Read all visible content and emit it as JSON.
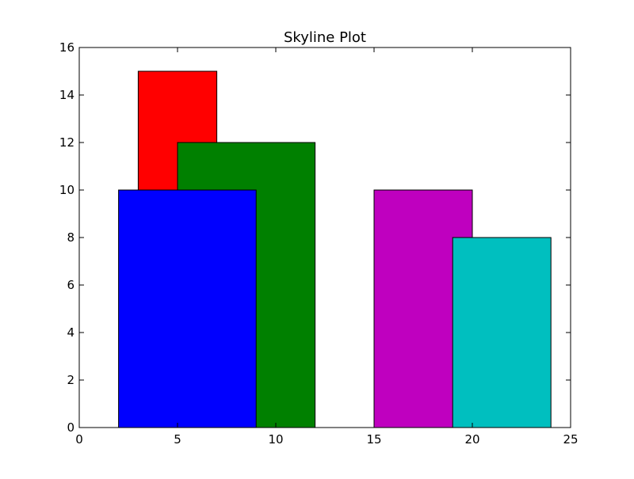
{
  "chart_data": {
    "type": "bar",
    "title": "Skyline Plot",
    "xlabel": "",
    "ylabel": "",
    "xlim": [
      0,
      25
    ],
    "ylim": [
      0,
      16
    ],
    "grid": false,
    "xticks": [
      "0",
      "5",
      "10",
      "15",
      "20",
      "25"
    ],
    "yticks": [
      "0",
      "2",
      "4",
      "6",
      "8",
      "10",
      "12",
      "14",
      "16"
    ],
    "buildings": [
      {
        "left": 3,
        "right": 7,
        "height": 15,
        "color": "#ff0000"
      },
      {
        "left": 5,
        "right": 12,
        "height": 12,
        "color": "#008000"
      },
      {
        "left": 2,
        "right": 9,
        "height": 10,
        "color": "#0000ff"
      },
      {
        "left": 15,
        "right": 20,
        "height": 10,
        "color": "#bf00bf"
      },
      {
        "left": 19,
        "right": 24,
        "height": 8,
        "color": "#00bfbf"
      }
    ]
  }
}
